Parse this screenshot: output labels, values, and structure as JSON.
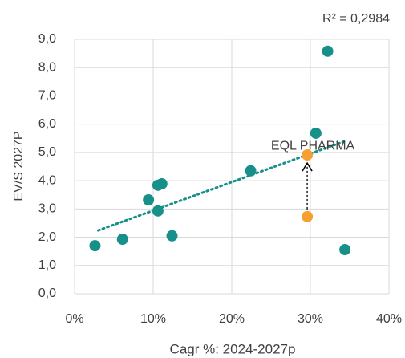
{
  "chart_data": {
    "type": "scatter",
    "annotation_r2": "R² = 0,2984",
    "annotation_label": "EQL PHARMA",
    "xlabel": "Cagr %: 2024-2027p",
    "ylabel": "EV/S 2027P",
    "xlim": [
      0,
      40
    ],
    "xticks": [
      {
        "value": 0,
        "label": "0%"
      },
      {
        "value": 10,
        "label": "10%"
      },
      {
        "value": 20,
        "label": "20%"
      },
      {
        "value": 30,
        "label": "30%"
      },
      {
        "value": 40,
        "label": "40%"
      }
    ],
    "ylim": [
      0,
      9
    ],
    "yticks": [
      {
        "value": 0,
        "label": "0,0"
      },
      {
        "value": 1,
        "label": "1,0"
      },
      {
        "value": 2,
        "label": "2,0"
      },
      {
        "value": 3,
        "label": "3,0"
      },
      {
        "value": 4,
        "label": "4,0"
      },
      {
        "value": 5,
        "label": "5,0"
      },
      {
        "value": 6,
        "label": "6,0"
      },
      {
        "value": 7,
        "label": "7,0"
      },
      {
        "value": 8,
        "label": "8,0"
      },
      {
        "value": 9,
        "label": "9,0"
      }
    ],
    "grid": true,
    "series": [
      {
        "color": "#17908a",
        "x": [
          2.6,
          6.1,
          9.4,
          10.6,
          11.1,
          10.6,
          12.4,
          22.4,
          30.7,
          32.2,
          34.4
        ],
        "values": [
          1.7,
          1.93,
          3.32,
          3.84,
          3.89,
          2.93,
          2.05,
          4.35,
          5.68,
          8.58,
          1.56
        ]
      },
      {
        "color": "#f5a030",
        "x": [
          29.6,
          29.6
        ],
        "values": [
          2.73,
          4.91
        ]
      }
    ],
    "trendline": {
      "color": "#17908a",
      "x": [
        3.0,
        34.4
      ],
      "values": [
        2.24,
        5.4
      ]
    }
  }
}
